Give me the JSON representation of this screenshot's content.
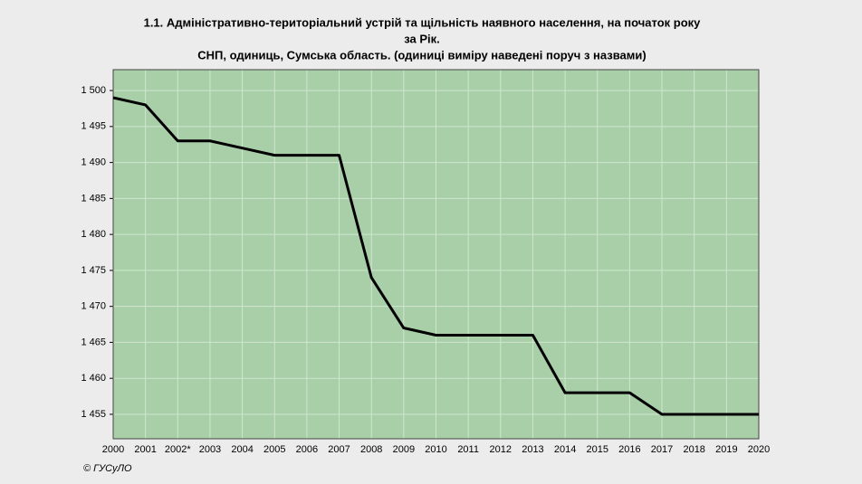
{
  "chart_data": {
    "type": "line",
    "title": [
      "1.1. Адміністративно-територіальний устрій та щільність наявного населення, на початок року",
      "за Рік.",
      "СНП, одиниць, Сумська область. (одиниці виміру наведені поруч з назвами)"
    ],
    "categories": [
      "2000",
      "2001",
      "2002*",
      "2003",
      "2004",
      "2005",
      "2006",
      "2007",
      "2008",
      "2009",
      "2010",
      "2011",
      "2012",
      "2013",
      "2014",
      "2015",
      "2016",
      "2017",
      "2018",
      "2019",
      "2020"
    ],
    "values": [
      1499,
      1498,
      1493,
      1493,
      1492,
      1491,
      1491,
      1491,
      1474,
      1467,
      1466,
      1466,
      1466,
      1466,
      1458,
      1458,
      1458,
      1455,
      1455,
      1455,
      1455
    ],
    "color": "#000000",
    "ylim": [
      1451.6,
      1502.9
    ],
    "yticks": [
      {
        "value": 1455,
        "label": "1 455"
      },
      {
        "value": 1460,
        "label": "1 460"
      },
      {
        "value": 1465,
        "label": "1 465"
      },
      {
        "value": 1470,
        "label": "1 470"
      },
      {
        "value": 1475,
        "label": "1 475"
      },
      {
        "value": 1480,
        "label": "1 480"
      },
      {
        "value": 1485,
        "label": "1 485"
      },
      {
        "value": 1490,
        "label": "1 490"
      },
      {
        "value": 1495,
        "label": "1 495"
      },
      {
        "value": 1500,
        "label": "1 500"
      }
    ],
    "grid": true,
    "footer": "© ГУСуЛО"
  }
}
